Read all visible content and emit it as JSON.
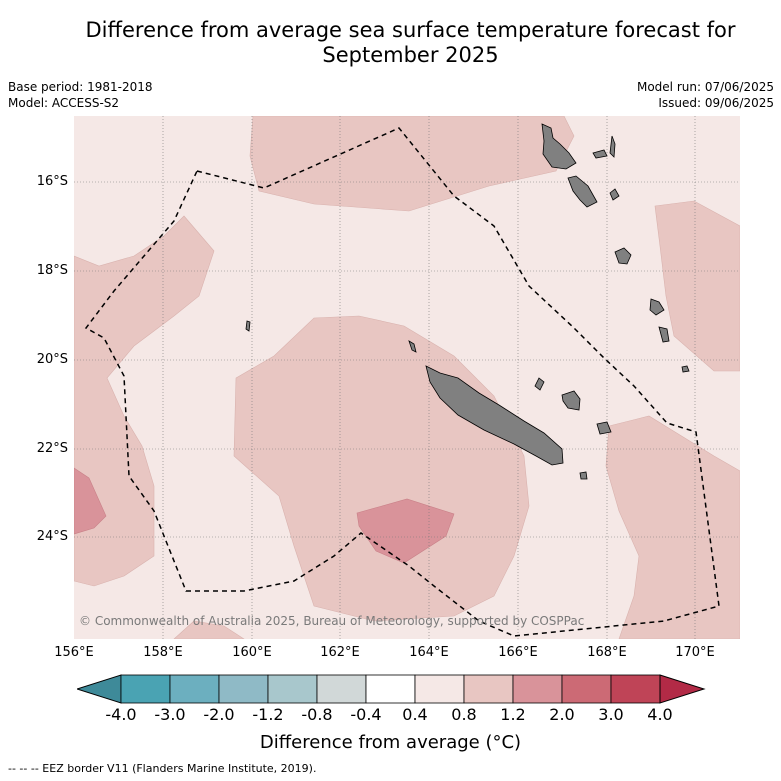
{
  "title_line1": "Difference from average sea surface temperature forecast for",
  "title_line2": "September 2025",
  "meta": {
    "base_period": "Base period: 1981-2018",
    "model": "Model: ACCESS-S2",
    "model_run": "Model run: 07/06/2025",
    "issued": "Issued: 09/06/2025"
  },
  "map": {
    "lon_range": [
      156,
      171
    ],
    "lat_range": [
      -26.3,
      -14.5
    ],
    "lat_ticks": [
      "16°S",
      "18°S",
      "20°S",
      "22°S",
      "24°S"
    ],
    "lon_ticks": [
      "156°E",
      "158°E",
      "160°E",
      "162°E",
      "164°E",
      "166°E",
      "168°E",
      "170°E"
    ],
    "copyright": "© Commonwealth of Australia 2025, Bureau of Meteorology, supported by COSPPac",
    "land_color": "#808080",
    "eez_line_style": "dashed"
  },
  "colorbar": {
    "ticks": [
      "-4.0",
      "-3.0",
      "-2.0",
      "-1.2",
      "-0.8",
      "-0.4",
      "0.4",
      "0.8",
      "1.2",
      "2.0",
      "3.0",
      "4.0"
    ],
    "colors": [
      "#4aa3b3",
      "#6cafbf",
      "#8fbac6",
      "#a8c7cc",
      "#d1d8d8",
      "#ffffff",
      "#f5e8e6",
      "#e8c6c2",
      "#d9939a",
      "#cc6a75",
      "#bf4457"
    ],
    "under_color": "#3e8a99",
    "over_color": "#b22a46",
    "label": "Difference from average (°C)"
  },
  "footnote": "--  --  -- EEZ border V11 (Flanders Marine Institute, 2019)."
}
